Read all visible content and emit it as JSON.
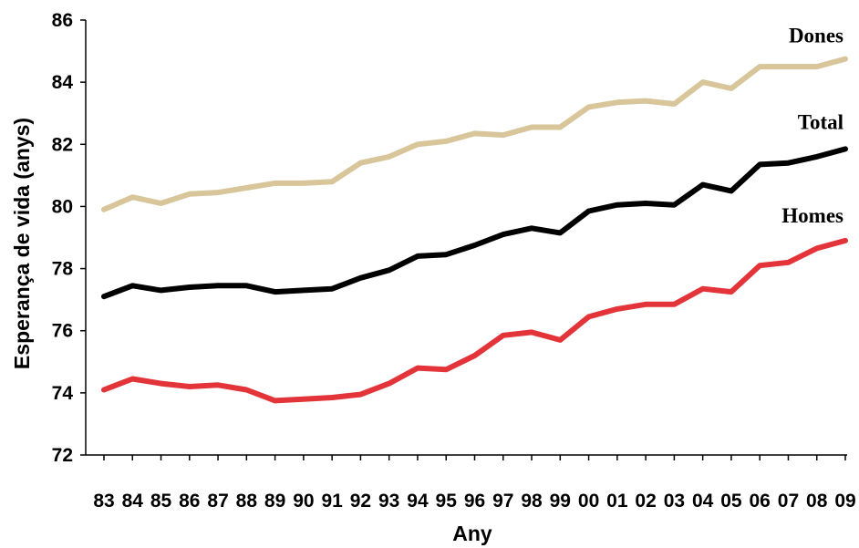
{
  "chart_data": {
    "type": "line",
    "xlabel": "Any",
    "ylabel": "Esperança de vida (anys)",
    "ylim": [
      72,
      86
    ],
    "yticks": [
      "72",
      "74",
      "76",
      "78",
      "80",
      "82",
      "84",
      "86"
    ],
    "categories": [
      "83",
      "84",
      "85",
      "86",
      "87",
      "88",
      "89",
      "90",
      "91",
      "92",
      "93",
      "94",
      "95",
      "96",
      "97",
      "98",
      "99",
      "00",
      "01",
      "02",
      "03",
      "04",
      "05",
      "06",
      "07",
      "08",
      "09"
    ],
    "grid": false,
    "legend": "labels at line ends (right)",
    "series": [
      {
        "name": "Dones",
        "color": "#d8c59a",
        "values": [
          79.9,
          80.3,
          80.1,
          80.4,
          80.45,
          80.6,
          80.75,
          80.75,
          80.8,
          81.4,
          81.6,
          82.0,
          82.1,
          82.35,
          82.3,
          82.55,
          82.55,
          83.2,
          83.35,
          83.4,
          83.3,
          84.0,
          83.8,
          84.5,
          84.5,
          84.5,
          84.75
        ]
      },
      {
        "name": "Total",
        "color": "#000000",
        "values": [
          77.1,
          77.45,
          77.3,
          77.4,
          77.45,
          77.45,
          77.25,
          77.3,
          77.35,
          77.7,
          77.95,
          78.4,
          78.45,
          78.75,
          79.1,
          79.3,
          79.15,
          79.85,
          80.05,
          80.1,
          80.05,
          80.7,
          80.5,
          81.35,
          81.4,
          81.6,
          81.85
        ]
      },
      {
        "name": "Homes",
        "color": "#e3343a",
        "values": [
          74.1,
          74.45,
          74.3,
          74.2,
          74.25,
          74.1,
          73.75,
          73.8,
          73.85,
          73.95,
          74.3,
          74.8,
          74.75,
          75.2,
          75.85,
          75.95,
          75.7,
          76.45,
          76.7,
          76.85,
          76.85,
          77.35,
          77.25,
          78.1,
          78.2,
          78.65,
          78.9
        ]
      }
    ]
  }
}
